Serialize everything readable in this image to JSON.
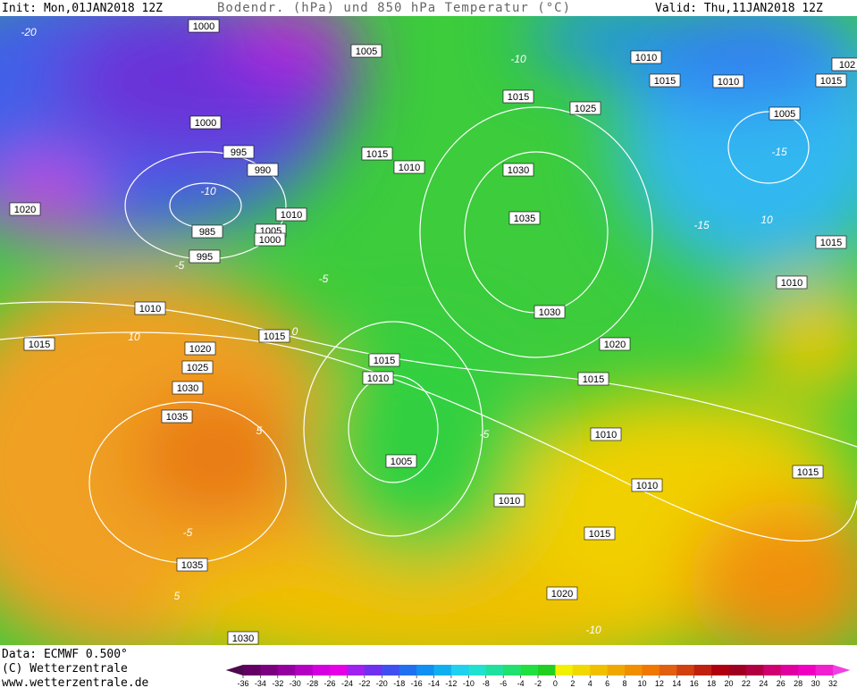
{
  "header": {
    "init": "Init: Mon,01JAN2018 12Z",
    "title": "Bodendr. (hPa) und 850 hPa Temperatur (°C)",
    "valid": "Valid: Thu,11JAN2018 12Z"
  },
  "map": {
    "isobar_labels": [
      1000,
      1005,
      1010,
      1015,
      1015,
      1010,
      1015,
      102,
      1000,
      1025,
      1005,
      995,
      1015,
      1010,
      990,
      1030,
      1020,
      1010,
      1035,
      985,
      1005,
      1000,
      1015,
      995,
      1010,
      1010,
      1030,
      1015,
      1015,
      1020,
      1020,
      1015,
      1025,
      1010,
      1015,
      1030,
      1035,
      1010,
      1005,
      1015,
      1010,
      1010,
      1015,
      1035,
      1020,
      1030
    ],
    "temperature_labels": [
      -20,
      -10,
      -5,
      -5,
      0,
      10,
      -10,
      -15,
      -15,
      10,
      5,
      -5,
      5,
      -10,
      -5
    ]
  },
  "footer": {
    "data": "Data: ECMWF  0.500°",
    "copyright": "(C) Wetterzentrale",
    "url": "www.wetterzentrale.de"
  },
  "legend": {
    "ticks": [
      -36,
      -34,
      -32,
      -30,
      -28,
      -26,
      -24,
      -22,
      -20,
      -18,
      -16,
      -14,
      -12,
      -10,
      -8,
      -6,
      -4,
      -2,
      0,
      2,
      4,
      6,
      8,
      10,
      12,
      14,
      16,
      18,
      20,
      22,
      24,
      26,
      28,
      30,
      32
    ],
    "colors": [
      "#4b0a4b",
      "#640064",
      "#7a0080",
      "#9400a0",
      "#b400c0",
      "#d400e0",
      "#e600e6",
      "#a020f0",
      "#7030f0",
      "#4050f0",
      "#2070f0",
      "#1090f0",
      "#10b0f0",
      "#20d0f0",
      "#20e0d0",
      "#20e0a0",
      "#20e070",
      "#20e040",
      "#20d020",
      "#f0f000",
      "#f0d800",
      "#f0c000",
      "#f0a800",
      "#f09000",
      "#f07800",
      "#e06010",
      "#d04010",
      "#c02010",
      "#b00010",
      "#a00020",
      "#b00040",
      "#d00070",
      "#e000a0",
      "#f000c0",
      "#f020d0",
      "#f040e0"
    ]
  }
}
